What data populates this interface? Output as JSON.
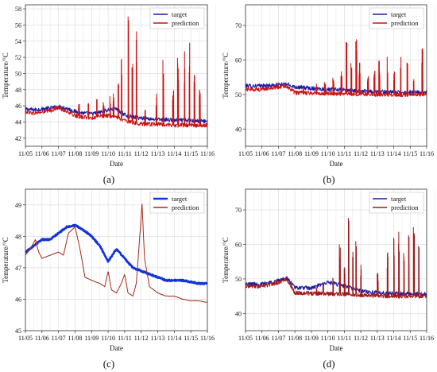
{
  "chart_data": [
    {
      "id": "a",
      "type": "line",
      "panel_label": "(a)",
      "xlabel": "Date",
      "ylabel": "Temperature/°C",
      "categories": [
        "11/05",
        "11/06",
        "11/07",
        "11/08",
        "11/09",
        "11/10",
        "11/11",
        "11/12",
        "11/13",
        "11/14",
        "11/15",
        "11/16"
      ],
      "ylim": [
        41,
        58.5
      ],
      "yticks": [
        42,
        44,
        46,
        48,
        50,
        52,
        54,
        56,
        58
      ],
      "grid": true,
      "legend": "top-right",
      "series": [
        {
          "name": "target",
          "color": "#1a1aa6",
          "points": [
            [
              0,
              45.6
            ],
            [
              0.5,
              45.5
            ],
            [
              1,
              45.6
            ],
            [
              1.5,
              45.7
            ],
            [
              2,
              45.9
            ],
            [
              2.5,
              45.7
            ],
            [
              3,
              45.3
            ],
            [
              3.5,
              45.1
            ],
            [
              4,
              45.0
            ],
            [
              4.5,
              45.2
            ],
            [
              5,
              45.5
            ],
            [
              5.5,
              45.6
            ],
            [
              6,
              44.9
            ],
            [
              6.5,
              44.6
            ],
            [
              7,
              44.5
            ],
            [
              7.5,
              44.4
            ],
            [
              8,
              44.3
            ],
            [
              8.5,
              44.3
            ],
            [
              9,
              44.2
            ],
            [
              9.5,
              44.2
            ],
            [
              10,
              44.2
            ],
            [
              10.5,
              44.1
            ],
            [
              11,
              44.1
            ]
          ]
        },
        {
          "name": "prediction",
          "color": "#cc1111",
          "base": [
            [
              0,
              45.3
            ],
            [
              0.5,
              45.1
            ],
            [
              1,
              45.2
            ],
            [
              1.5,
              45.4
            ],
            [
              2,
              45.8
            ],
            [
              2.5,
              45.3
            ],
            [
              3,
              44.8
            ],
            [
              3.5,
              44.6
            ],
            [
              4,
              44.5
            ],
            [
              4.5,
              44.7
            ],
            [
              5,
              44.8
            ],
            [
              5.5,
              44.6
            ],
            [
              6,
              44.2
            ],
            [
              6.5,
              43.9
            ],
            [
              7,
              43.8
            ],
            [
              7.5,
              43.7
            ],
            [
              8,
              43.7
            ],
            [
              8.5,
              43.7
            ],
            [
              9,
              43.6
            ],
            [
              9.5,
              43.6
            ],
            [
              10,
              43.6
            ],
            [
              10.5,
              43.6
            ],
            [
              11,
              43.6
            ]
          ],
          "spikes": [
            [
              3.2,
              46.2
            ],
            [
              3.8,
              46.5
            ],
            [
              4.3,
              46.8
            ],
            [
              4.7,
              46.5
            ],
            [
              5.1,
              47.2
            ],
            [
              5.3,
              48.0
            ],
            [
              5.6,
              49.0
            ],
            [
              5.8,
              52.5
            ],
            [
              6.2,
              57.5
            ],
            [
              6.45,
              53.0
            ],
            [
              6.7,
              56.3
            ],
            [
              7.2,
              45.5
            ],
            [
              7.9,
              47.5
            ],
            [
              8.3,
              52.6
            ],
            [
              8.9,
              48.0
            ],
            [
              9.2,
              52.5
            ],
            [
              9.6,
              53.0
            ],
            [
              9.9,
              54.3
            ],
            [
              10.2,
              51.5
            ],
            [
              10.5,
              49.0
            ]
          ]
        }
      ]
    },
    {
      "id": "b",
      "type": "line",
      "panel_label": "(b)",
      "xlabel": "Date",
      "ylabel": "Temperature/°C",
      "categories": [
        "11/05",
        "11/06",
        "11/07",
        "11/08",
        "11/09",
        "11/10",
        "11/11",
        "11/12",
        "11/13",
        "11/14",
        "11/15",
        "11/16"
      ],
      "ylim": [
        35,
        76
      ],
      "yticks": [
        40,
        50,
        60,
        70
      ],
      "grid": true,
      "legend": "top-right",
      "series": [
        {
          "name": "target",
          "color": "#1a1aa6",
          "points": [
            [
              0,
              52.5
            ],
            [
              1,
              52.5
            ],
            [
              2,
              52.8
            ],
            [
              2.5,
              53.0
            ],
            [
              3,
              52.2
            ],
            [
              4,
              51.8
            ],
            [
              5,
              51.5
            ],
            [
              6,
              51.3
            ],
            [
              7,
              51.0
            ],
            [
              8,
              50.8
            ],
            [
              9,
              50.7
            ],
            [
              10,
              50.6
            ],
            [
              11,
              50.5
            ]
          ]
        },
        {
          "name": "prediction",
          "color": "#cc1111",
          "base": [
            [
              0,
              51.5
            ],
            [
              1,
              51.5
            ],
            [
              2,
              52.2
            ],
            [
              2.5,
              52.5
            ],
            [
              3,
              50.5
            ],
            [
              4,
              50.4
            ],
            [
              5,
              50.3
            ],
            [
              6,
              50.2
            ],
            [
              7,
              50.1
            ],
            [
              8,
              50.0
            ],
            [
              9,
              50.0
            ],
            [
              10,
              50.0
            ],
            [
              11,
              50.0
            ]
          ],
          "spikes": [
            [
              3.5,
              52.5
            ],
            [
              4.3,
              53.5
            ],
            [
              4.8,
              54.5
            ],
            [
              5.3,
              55.0
            ],
            [
              5.8,
              57.0
            ],
            [
              6.1,
              65.5
            ],
            [
              6.4,
              60.5
            ],
            [
              6.7,
              67.0
            ],
            [
              6.9,
              59.5
            ],
            [
              7.4,
              55.5
            ],
            [
              7.8,
              58.5
            ],
            [
              8.1,
              60.0
            ],
            [
              8.6,
              61.0
            ],
            [
              9.0,
              57.0
            ],
            [
              9.4,
              61.5
            ],
            [
              9.8,
              59.5
            ],
            [
              10.2,
              55.5
            ],
            [
              10.7,
              63.5
            ]
          ]
        }
      ]
    },
    {
      "id": "c",
      "type": "line",
      "panel_label": "(c)",
      "xlabel": "Date",
      "ylabel": "Temperature/°C",
      "categories": [
        "11/05",
        "11/06",
        "11/07",
        "11/08",
        "11/09",
        "11/10",
        "11/11",
        "11/12",
        "11/13",
        "11/14",
        "11/15",
        "11/16"
      ],
      "ylim": [
        45,
        49.5
      ],
      "yticks": [
        45,
        46,
        47,
        48,
        49
      ],
      "grid": true,
      "legend": "top-right",
      "series": [
        {
          "name": "target",
          "color": "#1133dd",
          "points": [
            [
              0,
              47.5
            ],
            [
              0.5,
              47.7
            ],
            [
              1,
              47.9
            ],
            [
              1.5,
              47.9
            ],
            [
              2,
              48.1
            ],
            [
              2.5,
              48.3
            ],
            [
              3,
              48.35
            ],
            [
              3.5,
              48.2
            ],
            [
              4,
              48.0
            ],
            [
              4.5,
              47.7
            ],
            [
              5,
              47.2
            ],
            [
              5.5,
              47.6
            ],
            [
              6,
              47.3
            ],
            [
              6.5,
              47.0
            ],
            [
              7,
              46.9
            ],
            [
              7.5,
              46.8
            ],
            [
              8,
              46.7
            ],
            [
              8.5,
              46.6
            ],
            [
              9,
              46.6
            ],
            [
              9.5,
              46.6
            ],
            [
              10,
              46.55
            ],
            [
              10.5,
              46.5
            ],
            [
              11,
              46.5
            ]
          ]
        },
        {
          "name": "prediction",
          "color": "#a52a1a",
          "points": [
            [
              0,
              47.4
            ],
            [
              0.3,
              47.6
            ],
            [
              0.6,
              47.9
            ],
            [
              0.8,
              47.5
            ],
            [
              1,
              47.3
            ],
            [
              1.5,
              47.4
            ],
            [
              2,
              47.5
            ],
            [
              2.3,
              47.4
            ],
            [
              2.6,
              48.1
            ],
            [
              3,
              48.3
            ],
            [
              3.3,
              47.6
            ],
            [
              3.6,
              46.7
            ],
            [
              4,
              46.6
            ],
            [
              4.5,
              46.5
            ],
            [
              4.8,
              46.4
            ],
            [
              5,
              46.9
            ],
            [
              5.2,
              46.3
            ],
            [
              5.5,
              46.2
            ],
            [
              5.8,
              46.5
            ],
            [
              6,
              46.8
            ],
            [
              6.2,
              46.2
            ],
            [
              6.5,
              46.1
            ],
            [
              6.7,
              46.5
            ],
            [
              6.9,
              47.9
            ],
            [
              7.05,
              49.05
            ],
            [
              7.2,
              47.3
            ],
            [
              7.5,
              46.4
            ],
            [
              8,
              46.2
            ],
            [
              8.5,
              46.1
            ],
            [
              9,
              46.1
            ],
            [
              9.5,
              46.0
            ],
            [
              10,
              45.95
            ],
            [
              10.5,
              45.95
            ],
            [
              11,
              45.9
            ]
          ]
        }
      ]
    },
    {
      "id": "d",
      "type": "line",
      "panel_label": "(d)",
      "xlabel": "Date",
      "ylabel": "Temperature/°C",
      "categories": [
        "11/05",
        "11/06",
        "11/07",
        "11/08",
        "11/09",
        "11/10",
        "11/11",
        "11/12",
        "11/13",
        "11/14",
        "11/15",
        "11/16"
      ],
      "ylim": [
        35,
        76
      ],
      "yticks": [
        40,
        50,
        60,
        70
      ],
      "grid": true,
      "legend": "top-right",
      "series": [
        {
          "name": "target",
          "color": "#1a1aa6",
          "points": [
            [
              0,
              48.5
            ],
            [
              1,
              48.5
            ],
            [
              2,
              49.5
            ],
            [
              2.5,
              50.2
            ],
            [
              3,
              47.5
            ],
            [
              4,
              47.3
            ],
            [
              5,
              49.0
            ],
            [
              6,
              48.0
            ],
            [
              7,
              46.5
            ],
            [
              8,
              46.0
            ],
            [
              9,
              45.8
            ],
            [
              10,
              45.7
            ],
            [
              11,
              45.6
            ]
          ]
        },
        {
          "name": "prediction",
          "color": "#a01818",
          "base": [
            [
              0,
              48.0
            ],
            [
              1,
              47.8
            ],
            [
              2,
              49.0
            ],
            [
              2.5,
              50.0
            ],
            [
              3,
              46.0
            ],
            [
              4,
              45.8
            ],
            [
              5,
              45.7
            ],
            [
              6,
              45.6
            ],
            [
              7,
              45.3
            ],
            [
              8,
              45.1
            ],
            [
              9,
              45.0
            ],
            [
              10,
              45.0
            ],
            [
              11,
              45.0
            ]
          ],
          "spikes": [
            [
              4.3,
              47.5
            ],
            [
              4.7,
              49.5
            ],
            [
              5.3,
              51.5
            ],
            [
              5.7,
              60.0
            ],
            [
              6.0,
              53.5
            ],
            [
              6.25,
              73.0
            ],
            [
              6.5,
              62.0
            ],
            [
              6.7,
              64.0
            ],
            [
              7.0,
              55.0
            ],
            [
              8.0,
              52.0
            ],
            [
              8.6,
              59.0
            ],
            [
              9.0,
              62.0
            ],
            [
              9.3,
              65.0
            ],
            [
              9.6,
              60.0
            ],
            [
              9.9,
              68.5
            ],
            [
              10.2,
              69.0
            ],
            [
              10.5,
              62.0
            ]
          ]
        }
      ]
    }
  ]
}
